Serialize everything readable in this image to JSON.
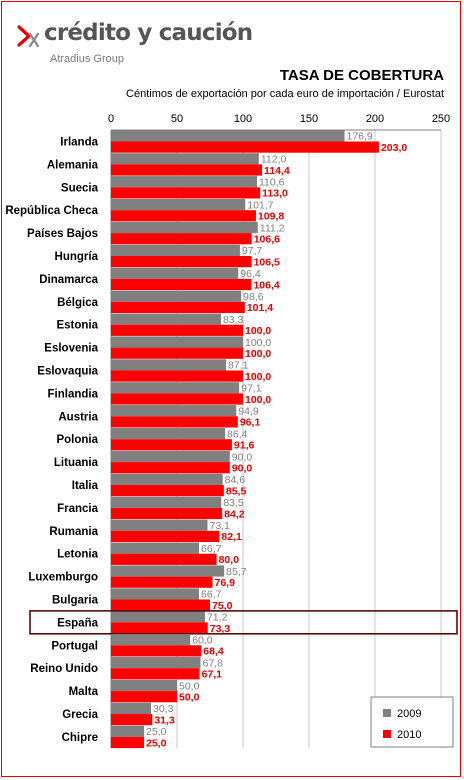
{
  "brand": {
    "name": "crédito y caución",
    "tagline": "Atradius Group",
    "accent_color": "#e60000",
    "logo_icon": "chevron-x-logo-icon"
  },
  "chart_data": {
    "type": "bar",
    "orientation": "horizontal",
    "title": "TASA DE COBERTURA",
    "subtitle": "Céntimos de exportación por cada euro de importación / Eurostat",
    "xlabel": "",
    "ylabel": "",
    "xlim": [
      0,
      250
    ],
    "x_ticks": [
      0,
      50,
      100,
      150,
      200,
      250
    ],
    "x_axis_position": "top",
    "grid": true,
    "legend_position": "bottom-right",
    "highlighted_category": "España",
    "categories": [
      "Irlanda",
      "Alemania",
      "Suecia",
      "República Checa",
      "Países Bajos",
      "Hungría",
      "Dinamarca",
      "Bélgica",
      "Estonia",
      "Eslovenia",
      "Eslovaquia",
      "Finlandia",
      "Austria",
      "Polonia",
      "Lituania",
      "Italia",
      "Francia",
      "Rumania",
      "Letonia",
      "Luxemburgo",
      "Bulgaria",
      "España",
      "Portugal",
      "Reino Unido",
      "Malta",
      "Grecia",
      "Chipre"
    ],
    "series": [
      {
        "name": "2009",
        "color": "#808080",
        "values": [
          176.9,
          112.0,
          110.6,
          101.7,
          111.2,
          97.7,
          96.4,
          98.6,
          83.3,
          100.0,
          87.1,
          97.1,
          94.9,
          86.4,
          90.0,
          84.6,
          83.5,
          73.1,
          66.7,
          85.7,
          66.7,
          71.2,
          60.0,
          67.8,
          50.0,
          30.3,
          25.0
        ],
        "labels": [
          "176,9",
          "112,0",
          "110,6",
          "101,7",
          "111,2",
          "97,7",
          "96,4",
          "98,6",
          "83,3",
          "100,0",
          "87,1",
          "97,1",
          "94,9",
          "86,4",
          "90,0",
          "84,6",
          "83,5",
          "73,1",
          "66,7",
          "85,7",
          "66,7",
          "71,2",
          "60,0",
          "67,8",
          "50,0",
          "30,3",
          "25,0"
        ]
      },
      {
        "name": "2010",
        "color": "#ff0000",
        "values": [
          203.0,
          114.4,
          113.0,
          109.8,
          106.6,
          106.5,
          106.4,
          101.4,
          100.0,
          100.0,
          100.0,
          100.0,
          96.1,
          91.6,
          90.0,
          85.5,
          84.2,
          82.1,
          80.0,
          76.9,
          75.0,
          73.3,
          68.4,
          67.1,
          50.0,
          31.3,
          25.0
        ],
        "labels": [
          "203,0",
          "114,4",
          "113,0",
          "109,8",
          "106,6",
          "106,5",
          "106,4",
          "101,4",
          "100,0",
          "100,0",
          "100,0",
          "100,0",
          "96,1",
          "91,6",
          "90,0",
          "85,5",
          "84,2",
          "82,1",
          "80,0",
          "76,9",
          "75,0",
          "73,3",
          "68,4",
          "67,1",
          "50,0",
          "31,3",
          "25,0"
        ]
      }
    ]
  }
}
